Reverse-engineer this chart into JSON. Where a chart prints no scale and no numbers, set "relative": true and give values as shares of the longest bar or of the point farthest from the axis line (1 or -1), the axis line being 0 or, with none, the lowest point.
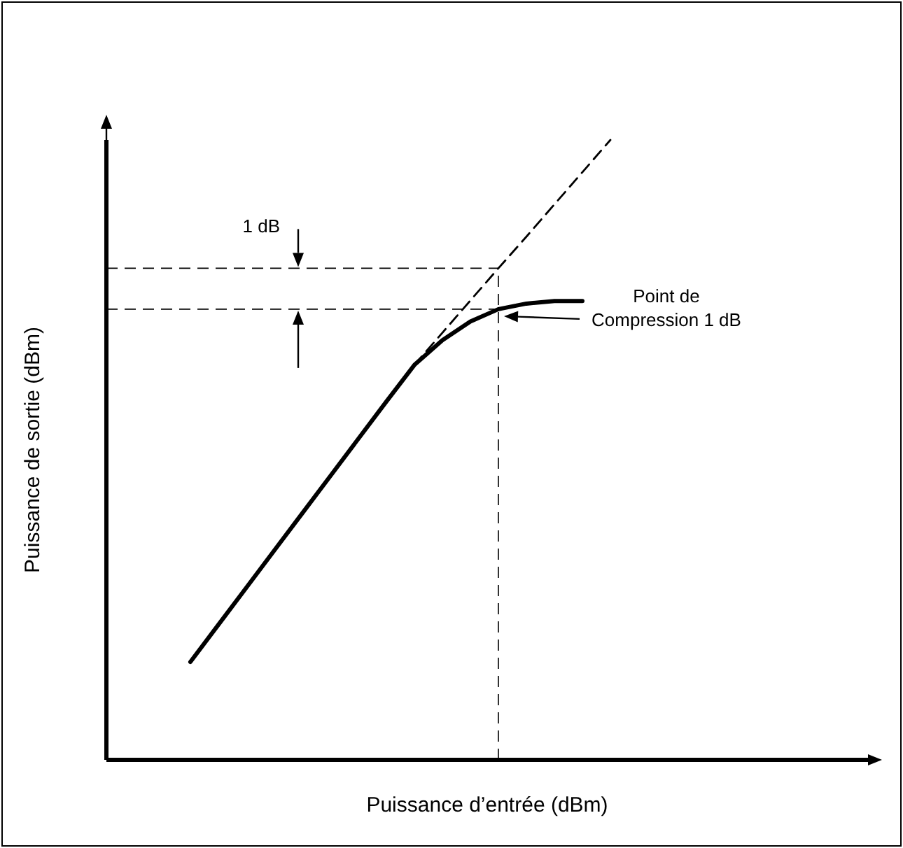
{
  "chart_data": {
    "type": "line",
    "relative": true,
    "xlabel": "Puissance d’entrée (dBm)",
    "ylabel": "Puissance de sortie (dBm)",
    "categories": [
      null,
      null,
      null,
      null,
      null,
      null,
      null,
      null,
      null,
      null,
      null,
      null,
      null,
      null,
      null,
      null,
      null,
      null,
      null,
      null,
      null,
      null,
      null,
      null,
      null,
      null,
      null,
      null
    ],
    "series": [
      {
        "color": "#000000",
        "line_style": "solid",
        "values": [
          null,
          null,
          null,
          0.158,
          0.218,
          0.278,
          0.338,
          0.398,
          0.458,
          0.518,
          0.578,
          0.637,
          0.677,
          0.707,
          0.727,
          0.736,
          0.74,
          0.74,
          null,
          null,
          null,
          null,
          null,
          null,
          null,
          null,
          null,
          null
        ]
      },
      {
        "color": "#000000",
        "line_style": "dashed",
        "values": [
          null,
          null,
          null,
          null,
          null,
          null,
          null,
          null,
          null,
          null,
          null,
          0.637,
          0.689,
          0.741,
          0.793,
          0.844,
          0.896,
          0.948,
          1.0,
          null,
          null,
          null,
          null,
          null,
          null,
          null,
          null,
          null
        ]
      }
    ],
    "ref_lines": [
      {
        "axis": "y",
        "value": 0.793,
        "color": "#000000",
        "line_style": "dashed"
      },
      {
        "axis": "y",
        "value": 0.727,
        "color": "#000000",
        "line_style": "dashed"
      }
    ],
    "annotations": [
      "1 dB",
      "Point de Compression 1 dB"
    ]
  }
}
